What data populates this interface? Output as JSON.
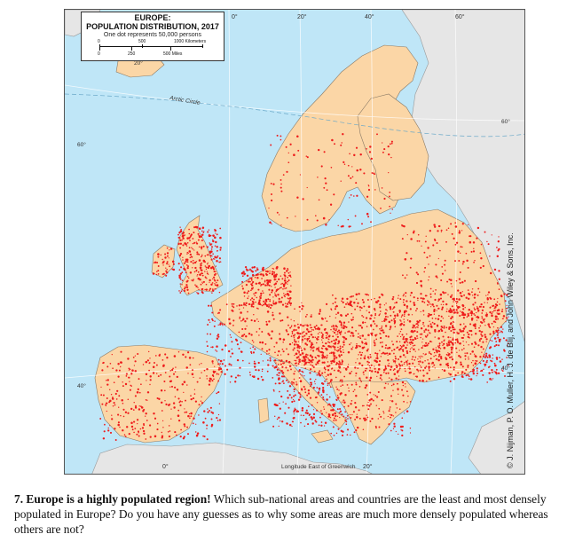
{
  "legend": {
    "title": "EUROPE:",
    "subtitle": "POPULATION DISTRIBUTION, 2017",
    "dot_note": "One dot represents 50,000 persons",
    "km_labels": [
      "0",
      "500",
      "1000 Kilometers"
    ],
    "mi_labels": [
      "0",
      "250",
      "500 Miles"
    ]
  },
  "map": {
    "graticule_top": [
      "0°",
      "20°",
      "40°",
      "60°"
    ],
    "graticule_bottom": [
      "0°",
      "20°"
    ],
    "graticule_left_top": "20°",
    "lat_labels": [
      "60°",
      "40°"
    ],
    "right_labels": [
      "60°",
      "40°"
    ],
    "arctic_circle": "Arctic Circle",
    "longitude_note": "Longitude East of Greenwich",
    "colors": {
      "sea": "#bfe6f7",
      "land_europe": "#fbd6a6",
      "land_outside": "#e6e6e6",
      "dots": "#ee1c1c"
    }
  },
  "copyright": "© J. Nijman, P. O. Muller, H. J. de Blij, and John Wiley & Sons, Inc.",
  "question": {
    "lead": "7. Europe is a highly populated region!",
    "body": " Which sub-national areas and countries are the least and most densely populated in Europe? Do you have any guesses as to why some areas are much more densely populated whereas others are not?"
  }
}
